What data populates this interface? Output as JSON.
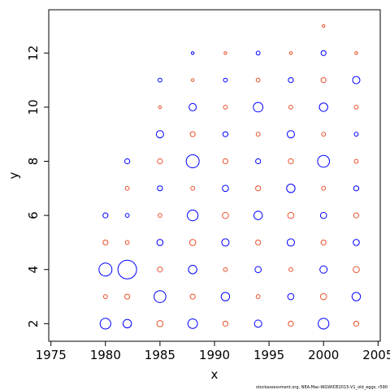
{
  "chart_data": {
    "type": "scatter",
    "x_label": "x",
    "y_label": "y",
    "footnote": "stockassessment.org, NEA-Mac-WGWIDE2015-V1_old_eggs, r590",
    "xlim": [
      1974.8,
      2005.2
    ],
    "xticks": [
      1975,
      1980,
      1985,
      1990,
      1995,
      2000,
      2005
    ],
    "ylim": [
      1.35,
      13.6
    ],
    "yticks": [
      2,
      4,
      6,
      8,
      10,
      12
    ],
    "series": [
      {
        "color": "#0000ff",
        "x": [
          1980,
          1980,
          1980,
          1982,
          1982,
          1982,
          1982,
          1985,
          1985,
          1985,
          1985,
          1985,
          1988,
          1988,
          1988,
          1988,
          1988,
          1988,
          1991,
          1991,
          1991,
          1991,
          1991,
          1994,
          1994,
          1994,
          1994,
          1994,
          1994,
          1997,
          1997,
          1997,
          1997,
          1997,
          2000,
          2000,
          2000,
          2000,
          2000,
          2000,
          2003,
          2003,
          2003,
          2003,
          2003
        ],
        "y": [
          2,
          4,
          6,
          2,
          4,
          6,
          8,
          3,
          5,
          7,
          9,
          11,
          2,
          4,
          6,
          8,
          10,
          12,
          3,
          5,
          7,
          9,
          11,
          2,
          4,
          6,
          8,
          10,
          12,
          3,
          5,
          7,
          9,
          11,
          2,
          4,
          6,
          8,
          10,
          12,
          3,
          5,
          7,
          9,
          11
        ],
        "size": [
          0.8,
          1.0,
          0.3,
          0.6,
          1.5,
          0.2,
          0.3,
          0.9,
          0.4,
          0.3,
          0.5,
          0.2,
          0.7,
          0.6,
          0.8,
          1.0,
          0.5,
          0.1,
          0.6,
          0.5,
          0.4,
          0.3,
          0.2,
          0.5,
          0.4,
          0.6,
          0.3,
          0.7,
          0.2,
          0.4,
          0.5,
          0.6,
          0.5,
          0.3,
          0.8,
          0.5,
          0.4,
          0.9,
          0.6,
          0.3,
          0.6,
          0.4,
          0.3,
          0.2,
          0.5
        ]
      },
      {
        "color": "#e8502a",
        "x": [
          1980,
          1980,
          1982,
          1982,
          1982,
          1985,
          1985,
          1985,
          1985,
          1985,
          1988,
          1988,
          1988,
          1988,
          1988,
          1991,
          1991,
          1991,
          1991,
          1991,
          1991,
          1994,
          1994,
          1994,
          1994,
          1994,
          1997,
          1997,
          1997,
          1997,
          1997,
          1997,
          2000,
          2000,
          2000,
          2000,
          2000,
          2000,
          2003,
          2003,
          2003,
          2003,
          2003,
          2003
        ],
        "y": [
          3,
          5,
          3,
          5,
          7,
          2,
          4,
          6,
          8,
          10,
          3,
          5,
          7,
          9,
          11,
          2,
          4,
          6,
          8,
          10,
          12,
          3,
          5,
          7,
          9,
          11,
          2,
          4,
          6,
          8,
          10,
          12,
          3,
          5,
          7,
          9,
          11,
          13,
          2,
          4,
          6,
          8,
          10,
          12
        ],
        "size": [
          0.2,
          0.3,
          0.3,
          0.2,
          0.2,
          0.4,
          0.3,
          0.2,
          0.3,
          0.1,
          0.3,
          0.4,
          0.2,
          0.3,
          0.1,
          0.3,
          0.2,
          0.4,
          0.3,
          0.2,
          0.1,
          0.2,
          0.3,
          0.3,
          0.2,
          0.2,
          0.3,
          0.2,
          0.4,
          0.3,
          0.2,
          0.1,
          0.4,
          0.3,
          0.2,
          0.2,
          0.3,
          0.1,
          0.3,
          0.4,
          0.3,
          0.2,
          0.2,
          0.1
        ]
      }
    ]
  }
}
